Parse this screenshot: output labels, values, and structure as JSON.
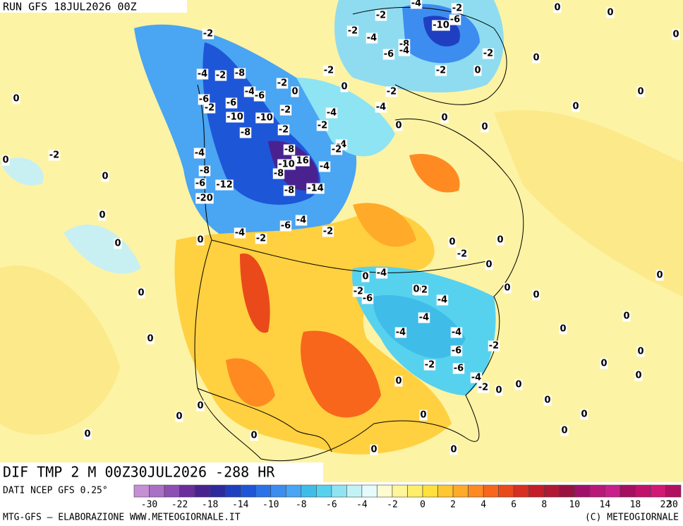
{
  "header": {
    "run": "RUN GFS 18JUL2026 00Z"
  },
  "field_label": "DIF TMP 2 M 00Z30JUL2026 -288 HR",
  "source": "DATI NCEP GFS 0.25°",
  "footer_left": "MTG-GFS — ELABORAZIONE WWW.METEOGIORNALE.IT",
  "footer_right": "(C) METEOGIORNALE",
  "colorbar": {
    "ticks": [
      -30,
      -22,
      -18,
      -14,
      -10,
      -8,
      -6,
      -4,
      -2,
      0,
      2,
      4,
      6,
      8,
      10,
      14,
      18,
      22,
      30
    ],
    "colors": [
      "#c58fd6",
      "#a970c6",
      "#8c4fb4",
      "#6a2e9c",
      "#4a2290",
      "#2c2a9c",
      "#1f3fc0",
      "#1e56d8",
      "#2a72e8",
      "#3d8cf0",
      "#4aa5f2",
      "#3fbde8",
      "#57d2ee",
      "#8ee4f2",
      "#c3f2f6",
      "#e6fbfb",
      "#fffbd0",
      "#fff59a",
      "#ffee6a",
      "#ffe03c",
      "#ffc832",
      "#ffaa28",
      "#ff8a22",
      "#f8661c",
      "#ea4a1a",
      "#d83020",
      "#c41e2a",
      "#b01834",
      "#9a1040",
      "#a0106a",
      "#b81878",
      "#c8208a",
      "#a51060",
      "#c0126a",
      "#d01874",
      "#b21060"
    ]
  },
  "contour_labels": [
    "-2",
    "-4",
    "-2",
    "-8",
    "-6",
    "-6",
    "-4",
    "-6",
    "-2",
    "-10",
    "-10",
    "-8",
    "-2",
    "-2",
    "-2",
    "0",
    "-4",
    "-8",
    "-6",
    "-12",
    "-20",
    "-8",
    "-16",
    "-10",
    "-8",
    "-8",
    "-14",
    "-4",
    "-4",
    "-2",
    "-6",
    "-4",
    "-2",
    "-2",
    "0",
    "-2",
    "-4",
    "-2",
    "-4",
    "-2",
    "-6",
    "-10",
    "-8",
    "-6",
    "-4",
    "-2",
    "-2",
    "0",
    "0",
    "0",
    "0",
    "0",
    "0",
    "0",
    "0",
    "0",
    "-2",
    "-4",
    "-4",
    "-2",
    "-4",
    "0",
    "-2",
    "0",
    "-2",
    "0",
    "0",
    "0",
    "0",
    "0",
    "0",
    "0",
    "0",
    "0",
    "0",
    "0",
    "0",
    "0",
    "0",
    "0",
    "0",
    "-2",
    "0",
    "0",
    "0",
    "0",
    "0",
    "0",
    "0",
    "0",
    "0",
    "0",
    "0",
    "0",
    "0",
    "0",
    "0",
    "-4",
    "0",
    "-2",
    "-6",
    "02",
    "-4",
    "-4",
    "-4",
    "-4",
    "-6",
    "-2",
    "-2",
    "-6",
    "-4",
    "-2",
    "0"
  ]
}
